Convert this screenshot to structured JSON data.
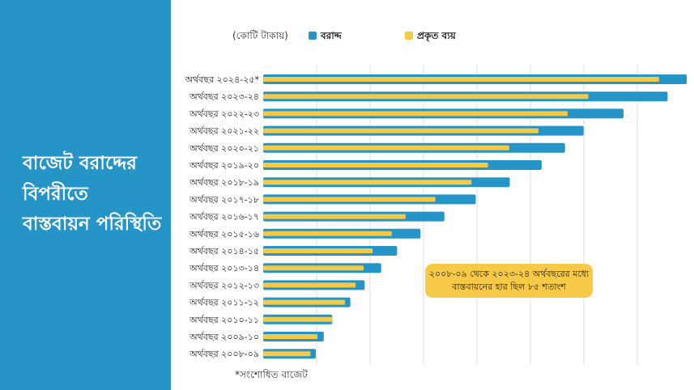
{
  "sidebar": {
    "title_lines": [
      "বাজেট বরাদ্দের",
      "বিপরীতে",
      "বাস্তবায়ন পরিস্থিতি"
    ]
  },
  "colors": {
    "allocation": "#2595c7",
    "actual": "#f6c947",
    "grid": "#dddddd"
  },
  "chart_data": {
    "type": "bar",
    "orientation": "horizontal",
    "title": "বাজেট বরাদ্দের বিপরীতে বাস্তবায়ন পরিস্থিতি",
    "unit_label": "(কোটি টাকায়)",
    "categories": [
      "অর্থবছর ২০২৪-২৫*",
      "অর্থবছর ২০২৩-২৪",
      "অর্থবছর ২০২২-২৩",
      "অর্থবছর ২০২১-২২",
      "অর্থবছর ২০২০-২১",
      "অর্থবছর ২০১৯-২০",
      "অর্থবছর ২০১৮-১৯",
      "অর্থবছর ২০১৭-১৮",
      "অর্থবছর ২০১৬-১৭",
      "অর্থবছর ২০১৫-১৬",
      "অর্থবছর ২০১৪-১৫",
      "অর্থবছর ২০১৩-১৪",
      "অর্থবছর ২০১২-১৩",
      "অর্থবছর ২০১১-১২",
      "অর্থবছর ২০১০-১১",
      "অর্থবছর ২০০৯-১০",
      "অর্থবছর ২০০৮-০৯"
    ],
    "series": [
      {
        "name": "বরাদ্দ",
        "values": [
          797000,
          761000,
          678000,
          603000,
          568000,
          524000,
          464000,
          400000,
          341000,
          296000,
          252000,
          222000,
          191000,
          164000,
          130000,
          114000,
          99000
        ]
      },
      {
        "name": "প্রকৃত ব্যয়",
        "values": [
          745000,
          612000,
          573000,
          518000,
          463000,
          423000,
          392000,
          324000,
          268000,
          242000,
          206000,
          189000,
          174000,
          154000,
          130000,
          102000,
          89000
        ]
      }
    ],
    "xlim": [
      0,
      800000
    ],
    "grid": true,
    "legend_position": "top",
    "annotation": "২০০৮-০৯ থেকে ২০২৩-২৪ অর্থবছরের মধ্যে বাস্তবায়নের হার ছিল ৮৫ শতাংশ",
    "footnote": "*সংশোধিত বাজেট"
  }
}
